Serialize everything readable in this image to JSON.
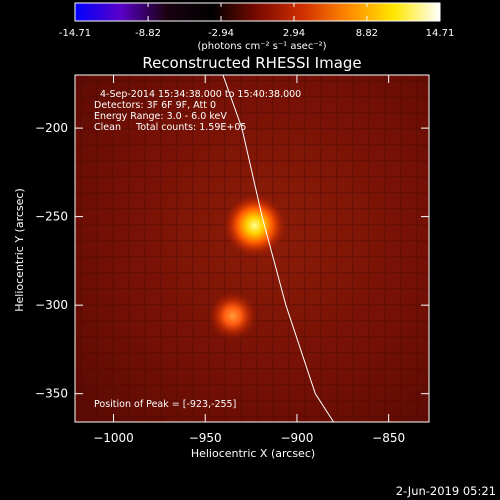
{
  "colorbar": {
    "ticks": [
      "-14.71",
      "-8.82",
      "-2.94",
      "2.94",
      "8.82",
      "14.71"
    ],
    "tick_values": [
      -14.71,
      -8.82,
      -2.94,
      2.94,
      8.82,
      14.71
    ],
    "range": [
      -14.71,
      14.71
    ],
    "units_label": "(photons cm⁻² s⁻¹ asec⁻²)",
    "colormap": [
      "#0000ff",
      "#5a00c8",
      "#1a0010",
      "#000000",
      "#7a0a00",
      "#d23000",
      "#ff8a00",
      "#ffe800",
      "#ffffff"
    ]
  },
  "chart_data": {
    "type": "heatmap",
    "title": "Reconstructed RHESSI Image",
    "xlabel": "Heliocentric X (arcsec)",
    "ylabel": "Heliocentric Y (arcsec)",
    "xlim": [
      -1021,
      -828
    ],
    "ylim": [
      -366,
      -170
    ],
    "xticks": [
      -1000,
      -950,
      -900,
      -850
    ],
    "xtick_labels": [
      "−1000",
      "−950",
      "−900",
      "−850"
    ],
    "yticks": [
      -200,
      -250,
      -300,
      -350
    ],
    "ytick_labels": [
      "−200",
      "−250",
      "−300",
      "−350"
    ],
    "sources": [
      {
        "x": -923,
        "y": -255,
        "peak": 14.71
      },
      {
        "x": -935,
        "y": -306,
        "peak": 9.5
      }
    ],
    "limb_curve": [
      [
        -941,
        -168
      ],
      [
        -930,
        -200
      ],
      [
        -919,
        -250
      ],
      [
        -906,
        -300
      ],
      [
        -890,
        -350
      ],
      [
        -880,
        -366
      ]
    ],
    "annotations": {
      "time": "4-Sep-2014 15:34:38.000 to 15:40:38.000",
      "detectors": "Detectors: 3F 6F 9F, Att 0",
      "energy": "Energy Range: 3.0 - 6.0 keV",
      "clean": "Clean     Total counts: 1.59E+05",
      "peak": "Position of Peak = [-923,-255]"
    }
  },
  "footer": {
    "date": "2-Jun-2019 05:21"
  }
}
